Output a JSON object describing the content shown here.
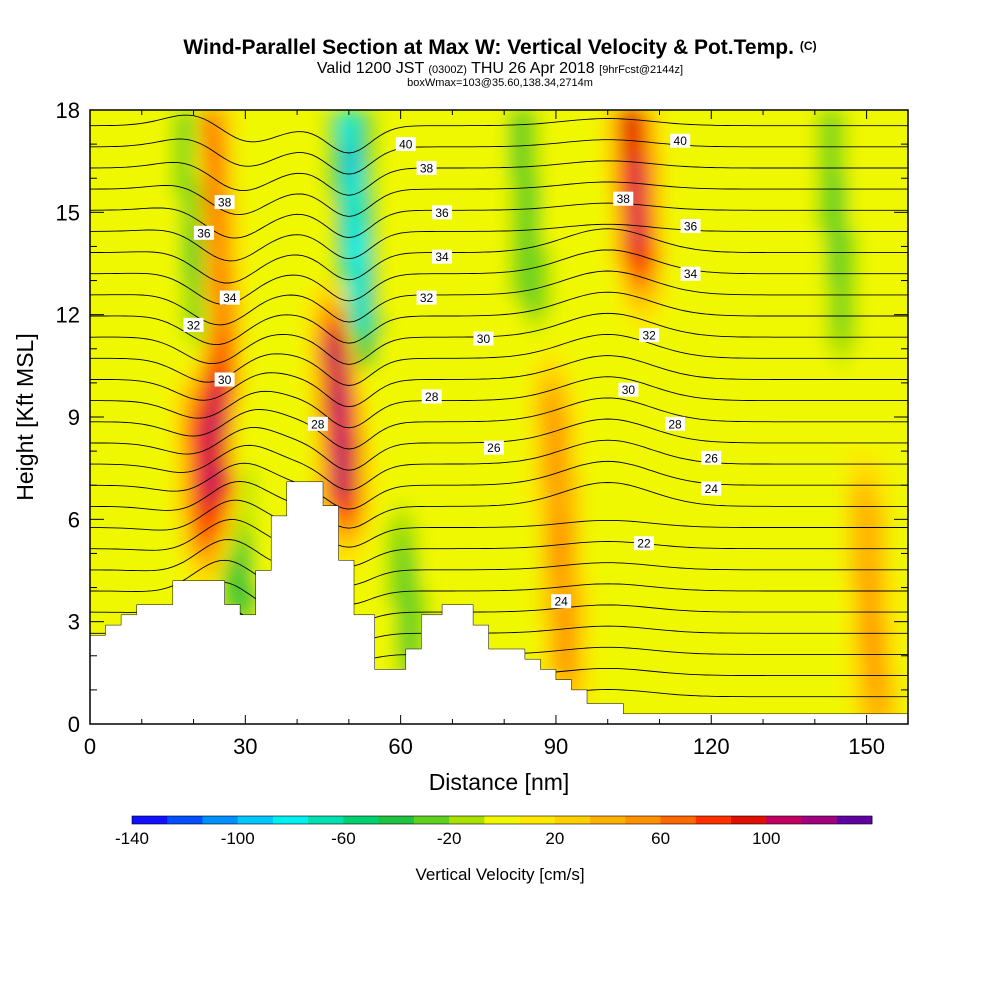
{
  "title": "Wind-Parallel Section at Max W: Vertical Velocity & Pot.Temp.",
  "title_mark": "(C)",
  "subtitle": {
    "valid": "Valid 1200 JST",
    "utc": "(0300Z)",
    "date": "THU 26 Apr 2018",
    "fcst": "[9hrFcst@2144z]"
  },
  "info_line": "boxWmax=103@35.60,138.34,2714m",
  "colors": {
    "scale": [
      "#1010ff",
      "#0050ff",
      "#0090ff",
      "#00c8ff",
      "#00f0f0",
      "#00e0b0",
      "#00d070",
      "#20c040",
      "#60d020",
      "#a8e000",
      "#f0f800",
      "#ffe800",
      "#ffd000",
      "#ffb000",
      "#ff9000",
      "#ff6800",
      "#ff3000",
      "#e01000",
      "#c00060",
      "#a00080",
      "#6000a0"
    ]
  },
  "chart_data": {
    "type": "heatmap",
    "xlabel": "Distance [nm]",
    "ylabel": "Height [Kft MSL]",
    "xlim": [
      0,
      158
    ],
    "ylim": [
      0,
      18
    ],
    "x_ticks": [
      "0",
      "30",
      "60",
      "90",
      "120",
      "150"
    ],
    "y_ticks": [
      "0",
      "3",
      "6",
      "9",
      "12",
      "15",
      "18"
    ],
    "colorbar": {
      "label": "Vertical Velocity [cm/s]",
      "ticks": [
        "-140",
        "-100",
        "-60",
        "-20",
        "20",
        "60",
        "100"
      ],
      "range": [
        -140,
        140
      ],
      "step": 13.333
    },
    "updrafts": [
      {
        "x": 26,
        "y_from": 7,
        "y_to": 18,
        "peak": 100
      },
      {
        "x": 49,
        "y_from": 7,
        "y_to": 11,
        "peak": 110
      },
      {
        "x": 106,
        "y_from": 14,
        "y_to": 18,
        "peak": 95
      },
      {
        "x": 22,
        "y_from": 6,
        "y_to": 8.5,
        "peak": 70
      },
      {
        "x": 92,
        "y_from": 2,
        "y_to": 9,
        "peak": 45
      },
      {
        "x": 152,
        "y_from": 0,
        "y_to": 6,
        "peak": 40
      }
    ],
    "downdrafts": [
      {
        "x": 22,
        "y_from": 12,
        "y_to": 18,
        "peak": -80
      },
      {
        "x": 52,
        "y_from": 12,
        "y_to": 18,
        "peak": -95
      },
      {
        "x": 29,
        "y_from": 4,
        "y_to": 8,
        "peak": -55
      },
      {
        "x": 85,
        "y_from": 13,
        "y_to": 18,
        "peak": -40
      },
      {
        "x": 145,
        "y_from": 12,
        "y_to": 18,
        "peak": -35
      },
      {
        "x": 62,
        "y_from": 1.5,
        "y_to": 5,
        "peak": -35
      }
    ],
    "theta_contour_labels": [
      {
        "text": "40",
        "x": 61,
        "y": 17.0
      },
      {
        "text": "40",
        "x": 114,
        "y": 17.1
      },
      {
        "text": "38",
        "x": 26,
        "y": 15.3
      },
      {
        "text": "38",
        "x": 65,
        "y": 16.3
      },
      {
        "text": "38",
        "x": 103,
        "y": 15.4
      },
      {
        "text": "36",
        "x": 22,
        "y": 14.4
      },
      {
        "text": "36",
        "x": 68,
        "y": 15.0
      },
      {
        "text": "36",
        "x": 116,
        "y": 14.6
      },
      {
        "text": "34",
        "x": 27,
        "y": 12.5
      },
      {
        "text": "34",
        "x": 68,
        "y": 13.7
      },
      {
        "text": "34",
        "x": 116,
        "y": 13.2
      },
      {
        "text": "32",
        "x": 20,
        "y": 11.7
      },
      {
        "text": "32",
        "x": 65,
        "y": 12.5
      },
      {
        "text": "32",
        "x": 108,
        "y": 11.4
      },
      {
        "text": "30",
        "x": 26,
        "y": 10.1
      },
      {
        "text": "30",
        "x": 76,
        "y": 11.3
      },
      {
        "text": "30",
        "x": 104,
        "y": 9.8
      },
      {
        "text": "28",
        "x": 44,
        "y": 8.8
      },
      {
        "text": "28",
        "x": 66,
        "y": 9.6
      },
      {
        "text": "28",
        "x": 113,
        "y": 8.8
      },
      {
        "text": "26",
        "x": 78,
        "y": 8.1
      },
      {
        "text": "26",
        "x": 120,
        "y": 7.8
      },
      {
        "text": "24",
        "x": 91,
        "y": 3.6
      },
      {
        "text": "24",
        "x": 120,
        "y": 6.9
      },
      {
        "text": "22",
        "x": 107,
        "y": 5.3
      }
    ],
    "terrain": [
      [
        0,
        2.6
      ],
      [
        3,
        2.6
      ],
      [
        3,
        2.9
      ],
      [
        6,
        2.9
      ],
      [
        6,
        3.2
      ],
      [
        9,
        3.2
      ],
      [
        9,
        3.5
      ],
      [
        16,
        3.5
      ],
      [
        16,
        4.2
      ],
      [
        26,
        4.2
      ],
      [
        26,
        3.5
      ],
      [
        29,
        3.5
      ],
      [
        29,
        3.2
      ],
      [
        32,
        3.2
      ],
      [
        32,
        4.5
      ],
      [
        35,
        4.5
      ],
      [
        35,
        6.1
      ],
      [
        38,
        6.1
      ],
      [
        38,
        7.1
      ],
      [
        45,
        7.1
      ],
      [
        45,
        6.4
      ],
      [
        48,
        6.4
      ],
      [
        48,
        4.8
      ],
      [
        51,
        4.8
      ],
      [
        51,
        3.2
      ],
      [
        55,
        3.2
      ],
      [
        55,
        1.6
      ],
      [
        61,
        1.6
      ],
      [
        61,
        2.2
      ],
      [
        64,
        2.2
      ],
      [
        64,
        3.2
      ],
      [
        68,
        3.2
      ],
      [
        68,
        3.5
      ],
      [
        74,
        3.5
      ],
      [
        74,
        2.9
      ],
      [
        77,
        2.9
      ],
      [
        77,
        2.2
      ],
      [
        84,
        2.2
      ],
      [
        84,
        1.9
      ],
      [
        87,
        1.9
      ],
      [
        87,
        1.6
      ],
      [
        90,
        1.6
      ],
      [
        90,
        1.3
      ],
      [
        93,
        1.3
      ],
      [
        93,
        1.0
      ],
      [
        96,
        1.0
      ],
      [
        96,
        0.6
      ],
      [
        103,
        0.6
      ],
      [
        103,
        0.3
      ],
      [
        158,
        0.3
      ]
    ]
  }
}
